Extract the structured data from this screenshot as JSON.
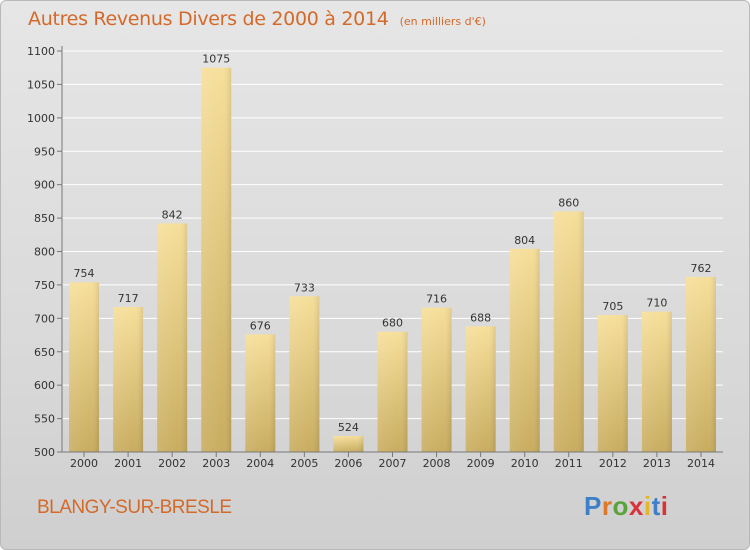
{
  "header": {
    "title": "Autres Revenus Divers de 2000 à 2014",
    "subtitle": "(en milliers d'€)"
  },
  "footer": {
    "city": "BLANGY-SUR-BRESLE",
    "logo": "Proxiti"
  },
  "colors": {
    "title": "#d46a2a",
    "bar_light": "#f6df9a",
    "bar_dark": "#c8ac5f",
    "axis": "#777777",
    "grid": "#ffffff"
  },
  "chart_data": {
    "type": "bar",
    "title": "Autres Revenus Divers de 2000 à 2014",
    "subtitle": "(en milliers d'€)",
    "xlabel": "",
    "ylabel": "",
    "categories": [
      "2000",
      "2001",
      "2002",
      "2003",
      "2004",
      "2005",
      "2006",
      "2007",
      "2008",
      "2009",
      "2010",
      "2011",
      "2012",
      "2013",
      "2014"
    ],
    "values": [
      754,
      717,
      842,
      1075,
      676,
      733,
      524,
      680,
      716,
      688,
      804,
      860,
      705,
      710,
      762
    ],
    "ylim": [
      500,
      1100
    ],
    "yticks": [
      500,
      550,
      600,
      650,
      700,
      750,
      800,
      850,
      900,
      950,
      1000,
      1050,
      1100
    ],
    "grid": true,
    "legend": "none"
  }
}
